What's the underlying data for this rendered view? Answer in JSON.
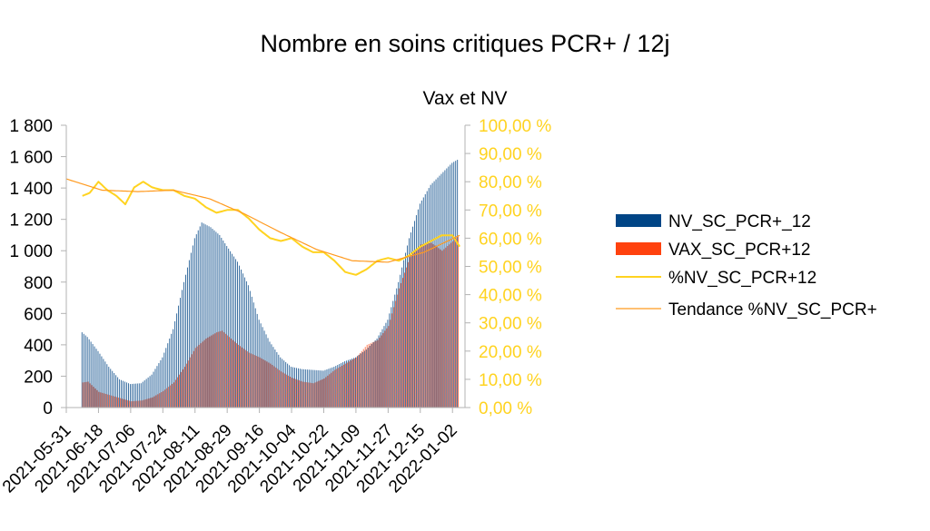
{
  "chart_data": {
    "type": "bar",
    "title": "Nombre en soins critiques PCR+ / 12j",
    "subtitle": "Vax et NV",
    "y_left": {
      "ticks": [
        "0",
        "200",
        "400",
        "600",
        "800",
        "1 000",
        "1 200",
        "1 400",
        "1 600",
        "1 800"
      ],
      "lim": [
        0,
        1800
      ]
    },
    "y_right": {
      "ticks": [
        "0,00 %",
        "10,00 %",
        "20,00 %",
        "30,00 %",
        "40,00 %",
        "50,00 %",
        "60,00 %",
        "70,00 %",
        "80,00 %",
        "90,00 %",
        "100,00 %"
      ],
      "lim": [
        0,
        100
      ],
      "color": "#ffd320"
    },
    "x_ticks": [
      "2021-05-31",
      "2021-06-18",
      "2021-07-06",
      "2021-07-24",
      "2021-08-11",
      "2021-08-29",
      "2021-09-16",
      "2021-10-04",
      "2021-10-22",
      "2021-11-09",
      "2021-11-27",
      "2021-12-15",
      "2022-01-02"
    ],
    "x_range": [
      "2021-05-31",
      "2022-01-09"
    ],
    "grid": false,
    "legend": "right",
    "series": [
      {
        "name": "NV_SC_PCR+_12",
        "kind": "bar",
        "axis": "left",
        "color": "#004586",
        "points": [
          [
            "2021-06-09",
            480
          ],
          [
            "2021-06-12",
            450
          ],
          [
            "2021-06-18",
            360
          ],
          [
            "2021-06-24",
            260
          ],
          [
            "2021-06-30",
            180
          ],
          [
            "2021-07-06",
            150
          ],
          [
            "2021-07-12",
            155
          ],
          [
            "2021-07-18",
            210
          ],
          [
            "2021-07-24",
            320
          ],
          [
            "2021-07-30",
            500
          ],
          [
            "2021-08-05",
            800
          ],
          [
            "2021-08-11",
            1080
          ],
          [
            "2021-08-15",
            1180
          ],
          [
            "2021-08-20",
            1150
          ],
          [
            "2021-08-25",
            1100
          ],
          [
            "2021-08-29",
            1030
          ],
          [
            "2021-09-04",
            930
          ],
          [
            "2021-09-10",
            780
          ],
          [
            "2021-09-16",
            560
          ],
          [
            "2021-09-22",
            420
          ],
          [
            "2021-09-28",
            320
          ],
          [
            "2021-10-04",
            260
          ],
          [
            "2021-10-10",
            245
          ],
          [
            "2021-10-16",
            240
          ],
          [
            "2021-10-22",
            235
          ],
          [
            "2021-10-28",
            260
          ],
          [
            "2021-11-03",
            295
          ],
          [
            "2021-11-09",
            320
          ],
          [
            "2021-11-15",
            370
          ],
          [
            "2021-11-21",
            440
          ],
          [
            "2021-11-27",
            560
          ],
          [
            "2021-12-03",
            800
          ],
          [
            "2021-12-09",
            1080
          ],
          [
            "2021-12-15",
            1300
          ],
          [
            "2021-12-21",
            1420
          ],
          [
            "2021-12-27",
            1490
          ],
          [
            "2022-01-02",
            1560
          ],
          [
            "2022-01-05",
            1580
          ]
        ]
      },
      {
        "name": "VAX_SC_PCR+12",
        "kind": "bar",
        "axis": "left",
        "color": "#ff420e",
        "points": [
          [
            "2021-06-09",
            160
          ],
          [
            "2021-06-12",
            165
          ],
          [
            "2021-06-18",
            100
          ],
          [
            "2021-06-24",
            80
          ],
          [
            "2021-06-30",
            60
          ],
          [
            "2021-07-06",
            40
          ],
          [
            "2021-07-12",
            45
          ],
          [
            "2021-07-18",
            65
          ],
          [
            "2021-07-24",
            105
          ],
          [
            "2021-07-30",
            160
          ],
          [
            "2021-08-05",
            260
          ],
          [
            "2021-08-11",
            380
          ],
          [
            "2021-08-17",
            440
          ],
          [
            "2021-08-23",
            480
          ],
          [
            "2021-08-26",
            490
          ],
          [
            "2021-08-29",
            460
          ],
          [
            "2021-09-04",
            400
          ],
          [
            "2021-09-10",
            350
          ],
          [
            "2021-09-16",
            320
          ],
          [
            "2021-09-22",
            280
          ],
          [
            "2021-09-28",
            230
          ],
          [
            "2021-10-04",
            190
          ],
          [
            "2021-10-10",
            165
          ],
          [
            "2021-10-16",
            155
          ],
          [
            "2021-10-22",
            185
          ],
          [
            "2021-10-28",
            240
          ],
          [
            "2021-11-03",
            280
          ],
          [
            "2021-11-09",
            320
          ],
          [
            "2021-11-15",
            400
          ],
          [
            "2021-11-21",
            430
          ],
          [
            "2021-11-27",
            520
          ],
          [
            "2021-12-03",
            760
          ],
          [
            "2021-12-09",
            960
          ],
          [
            "2021-12-15",
            1040
          ],
          [
            "2021-12-21",
            1050
          ],
          [
            "2021-12-27",
            1000
          ],
          [
            "2022-01-02",
            1060
          ],
          [
            "2022-01-05",
            1090
          ]
        ]
      },
      {
        "name": "%NV_SC_PCR+12",
        "kind": "line",
        "axis": "right",
        "color": "#ffd320",
        "points": [
          [
            "2021-06-09",
            75
          ],
          [
            "2021-06-13",
            76
          ],
          [
            "2021-06-18",
            80
          ],
          [
            "2021-06-23",
            77
          ],
          [
            "2021-06-28",
            75
          ],
          [
            "2021-07-03",
            72
          ],
          [
            "2021-07-08",
            78
          ],
          [
            "2021-07-13",
            80
          ],
          [
            "2021-07-18",
            78
          ],
          [
            "2021-07-24",
            77
          ],
          [
            "2021-07-30",
            77
          ],
          [
            "2021-08-05",
            75
          ],
          [
            "2021-08-11",
            74
          ],
          [
            "2021-08-17",
            71
          ],
          [
            "2021-08-23",
            69
          ],
          [
            "2021-08-29",
            70
          ],
          [
            "2021-09-04",
            70
          ],
          [
            "2021-09-10",
            67
          ],
          [
            "2021-09-16",
            63
          ],
          [
            "2021-09-22",
            60
          ],
          [
            "2021-09-28",
            59
          ],
          [
            "2021-10-04",
            60
          ],
          [
            "2021-10-10",
            57
          ],
          [
            "2021-10-16",
            55
          ],
          [
            "2021-10-22",
            55
          ],
          [
            "2021-10-28",
            52
          ],
          [
            "2021-11-03",
            48
          ],
          [
            "2021-11-09",
            47
          ],
          [
            "2021-11-15",
            49
          ],
          [
            "2021-11-21",
            52
          ],
          [
            "2021-11-27",
            53
          ],
          [
            "2021-12-03",
            52
          ],
          [
            "2021-12-09",
            54
          ],
          [
            "2021-12-15",
            57
          ],
          [
            "2021-12-21",
            59
          ],
          [
            "2021-12-27",
            61
          ],
          [
            "2022-01-02",
            61
          ],
          [
            "2022-01-06",
            57
          ]
        ]
      },
      {
        "name": "Tendance %NV_SC_PCR+",
        "kind": "line",
        "axis": "right",
        "color": "#ff9a1f",
        "points": [
          [
            "2021-05-31",
            81
          ],
          [
            "2021-06-20",
            77
          ],
          [
            "2021-07-10",
            76.5
          ],
          [
            "2021-07-30",
            77
          ],
          [
            "2021-08-19",
            74
          ],
          [
            "2021-09-08",
            68.5
          ],
          [
            "2021-09-28",
            62
          ],
          [
            "2021-10-18",
            56
          ],
          [
            "2021-11-07",
            52
          ],
          [
            "2021-11-27",
            51.5
          ],
          [
            "2021-12-17",
            55
          ],
          [
            "2022-01-06",
            61
          ]
        ]
      }
    ]
  }
}
